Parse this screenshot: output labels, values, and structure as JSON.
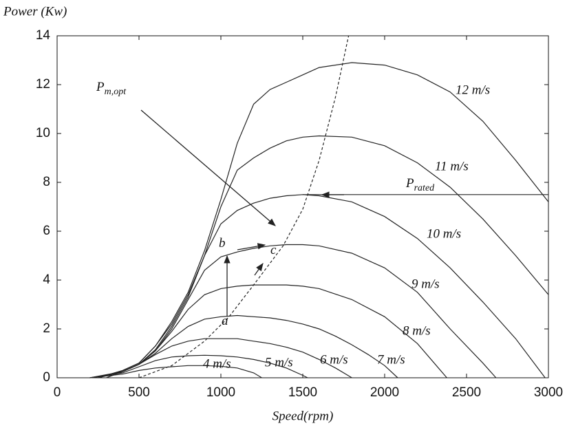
{
  "chart_data": {
    "type": "line",
    "y_label": "Power (Kw)",
    "x_label": "Speed(rpm)",
    "xlim": [
      0,
      3000
    ],
    "ylim": [
      0,
      14
    ],
    "xticks": [
      0,
      500,
      1000,
      1500,
      2000,
      2500,
      3000
    ],
    "yticks": [
      0,
      2,
      4,
      6,
      8,
      10,
      12,
      14
    ],
    "grid": false,
    "color": "#222222",
    "series": [
      {
        "name": "4 m/s",
        "x": [
          200,
          400,
          500,
          600,
          700,
          800,
          900,
          1000,
          1100,
          1200,
          1250
        ],
        "values": [
          0,
          0.15,
          0.3,
          0.4,
          0.45,
          0.5,
          0.5,
          0.47,
          0.4,
          0.2,
          0
        ]
      },
      {
        "name": "5 m/s",
        "x": [
          200,
          400,
          500,
          600,
          700,
          800,
          900,
          1000,
          1100,
          1200,
          1300,
          1400,
          1500,
          1530
        ],
        "values": [
          0,
          0.2,
          0.45,
          0.7,
          0.85,
          0.9,
          0.92,
          0.9,
          0.85,
          0.75,
          0.6,
          0.4,
          0.1,
          0
        ]
      },
      {
        "name": "6 m/s",
        "x": [
          200,
          400,
          500,
          600,
          700,
          800,
          900,
          1000,
          1100,
          1200,
          1300,
          1400,
          1500,
          1600,
          1700,
          1800
        ],
        "values": [
          0,
          0.25,
          0.55,
          0.95,
          1.3,
          1.5,
          1.6,
          1.6,
          1.6,
          1.5,
          1.4,
          1.25,
          1.05,
          0.75,
          0.4,
          0
        ]
      },
      {
        "name": "7 m/s",
        "x": [
          250,
          400,
          500,
          600,
          700,
          800,
          900,
          1000,
          1100,
          1200,
          1300,
          1400,
          1500,
          1600,
          1700,
          1800,
          1900,
          2000,
          2080
        ],
        "values": [
          0,
          0.25,
          0.55,
          1.0,
          1.6,
          2.1,
          2.4,
          2.5,
          2.55,
          2.5,
          2.45,
          2.35,
          2.2,
          2.0,
          1.7,
          1.35,
          0.95,
          0.5,
          0
        ]
      },
      {
        "name": "8 m/s",
        "x": [
          250,
          400,
          500,
          600,
          700,
          800,
          900,
          1000,
          1100,
          1200,
          1300,
          1400,
          1500,
          1600,
          1800,
          2000,
          2200,
          2380
        ],
        "values": [
          0,
          0.25,
          0.55,
          1.1,
          1.9,
          2.8,
          3.4,
          3.65,
          3.75,
          3.8,
          3.8,
          3.8,
          3.75,
          3.65,
          3.2,
          2.5,
          1.4,
          0
        ]
      },
      {
        "name": "9 m/s",
        "x": [
          300,
          400,
          500,
          600,
          700,
          800,
          900,
          1000,
          1100,
          1200,
          1300,
          1400,
          1500,
          1600,
          1800,
          2000,
          2200,
          2400,
          2600,
          2680
        ],
        "values": [
          0,
          0.25,
          0.55,
          1.1,
          2.0,
          3.2,
          4.4,
          4.95,
          5.15,
          5.3,
          5.4,
          5.45,
          5.45,
          5.4,
          5.1,
          4.5,
          3.5,
          2.0,
          0.6,
          0
        ]
      },
      {
        "name": "10 m/s",
        "x": [
          300,
          400,
          500,
          600,
          700,
          800,
          900,
          1000,
          1100,
          1200,
          1300,
          1400,
          1500,
          1600,
          1800,
          2000,
          2200,
          2400,
          2600,
          2800,
          2980
        ],
        "values": [
          0,
          0.25,
          0.55,
          1.15,
          2.1,
          3.3,
          5.0,
          6.3,
          6.85,
          7.15,
          7.35,
          7.45,
          7.5,
          7.45,
          7.2,
          6.6,
          5.7,
          4.5,
          3.1,
          1.6,
          0
        ]
      },
      {
        "name": "11 m/s",
        "x": [
          300,
          400,
          500,
          600,
          700,
          800,
          900,
          1000,
          1100,
          1200,
          1300,
          1400,
          1500,
          1600,
          1800,
          2000,
          2200,
          2400,
          2600,
          2800,
          3000
        ],
        "values": [
          0.1,
          0.3,
          0.6,
          1.3,
          2.2,
          3.4,
          5.0,
          7.0,
          8.5,
          9.0,
          9.4,
          9.7,
          9.85,
          9.9,
          9.85,
          9.5,
          8.8,
          7.8,
          6.5,
          5.0,
          3.4
        ]
      },
      {
        "name": "12 m/s",
        "x": [
          300,
          400,
          500,
          600,
          700,
          800,
          900,
          1000,
          1100,
          1200,
          1300,
          1400,
          1500,
          1600,
          1800,
          2000,
          2200,
          2400,
          2600,
          2800,
          3000
        ],
        "values": [
          0.1,
          0.3,
          0.6,
          1.3,
          2.3,
          3.5,
          5.2,
          7.3,
          9.6,
          11.2,
          11.8,
          12.1,
          12.4,
          12.7,
          12.9,
          12.8,
          12.4,
          11.7,
          10.5,
          8.9,
          7.2
        ]
      }
    ],
    "opt_curve": {
      "x": [
        500,
        700,
        900,
        1050,
        1200,
        1380,
        1500,
        1600,
        1700,
        1780
      ],
      "values": [
        0,
        0.5,
        1.5,
        2.5,
        3.8,
        5.4,
        6.9,
        8.9,
        11.5,
        14
      ]
    },
    "rated_line": {
      "x": [
        1500,
        3000
      ],
      "values": [
        7.5,
        7.5
      ]
    },
    "annotations": [
      {
        "text": "P",
        "sub": "m,opt"
      },
      {
        "text": "P",
        "sub": "rated"
      },
      {
        "text": "a"
      },
      {
        "text": "b"
      },
      {
        "text": "c"
      }
    ]
  }
}
